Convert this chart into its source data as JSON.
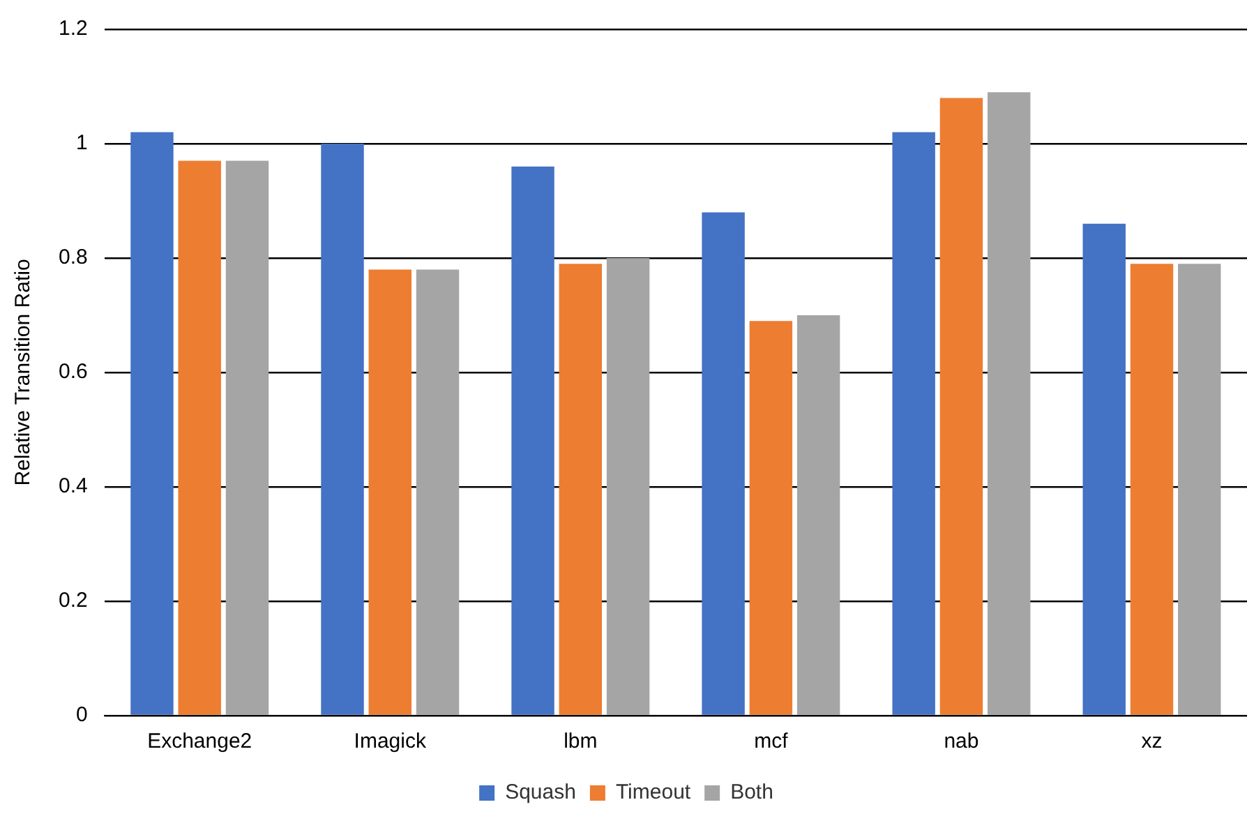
{
  "chart_data": {
    "type": "bar",
    "ylabel": "Relative Transition Ratio",
    "categories": [
      "Exchange2",
      "Imagick",
      "lbm",
      "mcf",
      "nab",
      "xz"
    ],
    "series": [
      {
        "name": "Squash",
        "color": "#4472c4",
        "values": [
          1.02,
          1.0,
          0.96,
          0.88,
          1.02,
          0.86
        ]
      },
      {
        "name": "Timeout",
        "color": "#ed7d31",
        "values": [
          0.97,
          0.78,
          0.79,
          0.69,
          1.08,
          0.79
        ]
      },
      {
        "name": "Both",
        "color": "#a5a5a5",
        "values": [
          0.97,
          0.78,
          0.8,
          0.7,
          1.09,
          0.79
        ]
      }
    ],
    "ylim": [
      0,
      1.2
    ],
    "yticks": [
      0,
      0.2,
      0.4,
      0.6,
      0.8,
      1,
      1.2
    ],
    "grid": "y",
    "legend": "bottom"
  }
}
